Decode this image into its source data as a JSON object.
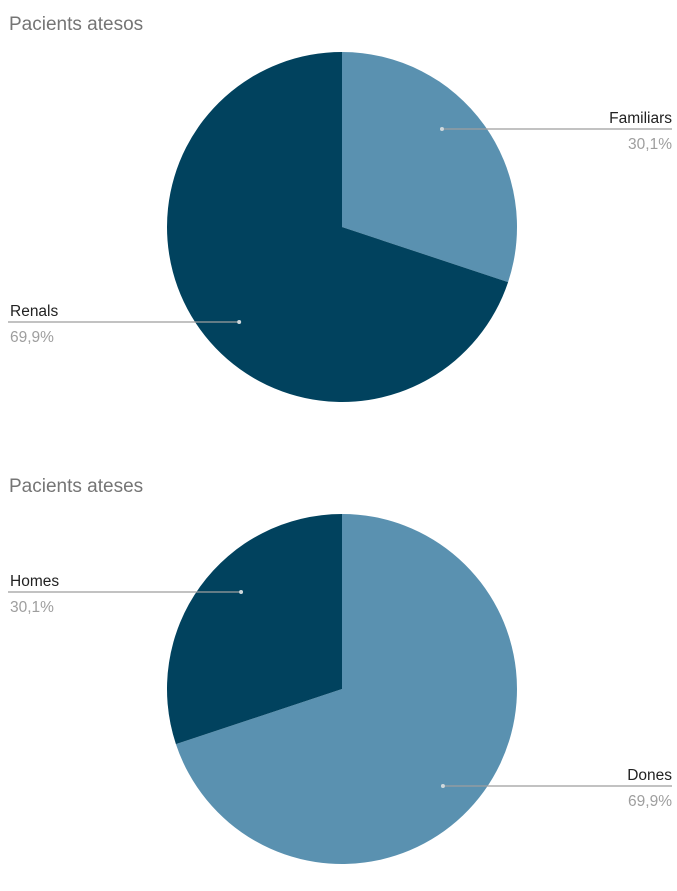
{
  "colors": {
    "dark": "#01425e",
    "light": "#5a91b0",
    "leader": "#9e9e9e"
  },
  "chart_data": [
    {
      "type": "pie",
      "title": "Pacients atesos",
      "labels": [
        "Familiars",
        "Renals"
      ],
      "values": [
        30.1,
        69.9
      ],
      "value_labels": [
        "30,1%",
        "69,9%"
      ],
      "colors": [
        "#5a91b0",
        "#01425e"
      ],
      "start_angle_deg": 0,
      "direction": "clockwise",
      "legend": "callouts"
    },
    {
      "type": "pie",
      "title": "Pacients ateses",
      "labels": [
        "Dones",
        "Homes"
      ],
      "values": [
        69.9,
        30.1
      ],
      "value_labels": [
        "69,9%",
        "30,1%"
      ],
      "colors": [
        "#5a91b0",
        "#01425e"
      ],
      "start_angle_deg": 0,
      "direction": "clockwise",
      "legend": "callouts"
    }
  ]
}
